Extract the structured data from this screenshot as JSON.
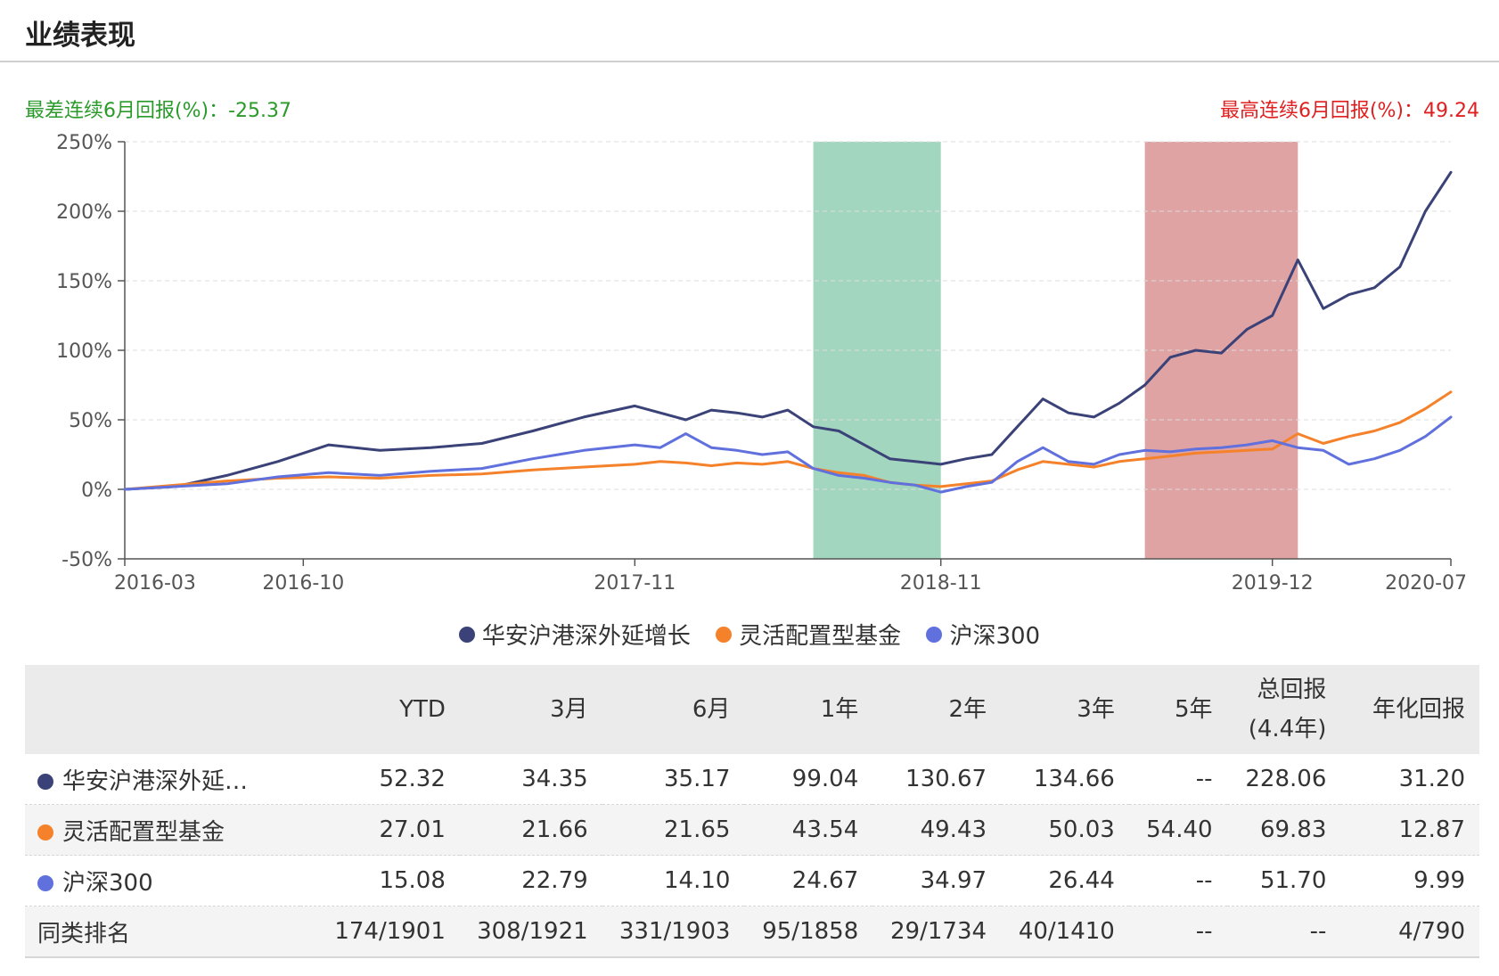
{
  "section_title": "业绩表现",
  "stats": {
    "worst_6m": "最差连续6月回报(%)：-25.37",
    "best_6m": "最高连续6月回报(%)：49.24"
  },
  "colors": {
    "fund": "#3a4278",
    "category": "#f5822a",
    "index": "#6070dc",
    "worst_band": "#a3d6bf",
    "best_band": "#e0a3a3"
  },
  "chart_data": {
    "type": "line",
    "x_ticks": [
      "2016-03",
      "2016-10",
      "2017-11",
      "2018-11",
      "2019-12",
      "2020-07"
    ],
    "y_ticks": [
      "250%",
      "200%",
      "150%",
      "100%",
      "50%",
      "0%",
      "-50%"
    ],
    "ylim": [
      -50,
      250
    ],
    "xlim": [
      "2016-03",
      "2020-07"
    ],
    "grid": "horizontal dashed",
    "legend_position": "bottom-center",
    "highlight_bands": [
      {
        "label": "worst_6m",
        "start": "2018-06",
        "end": "2018-11"
      },
      {
        "label": "best_6m",
        "start": "2019-07",
        "end": "2020-01"
      }
    ],
    "series": [
      {
        "name": "华安沪港深外延增长",
        "color_key": "fund",
        "x": [
          "2016-03",
          "2016-05",
          "2016-07",
          "2016-09",
          "2016-11",
          "2017-01",
          "2017-03",
          "2017-05",
          "2017-07",
          "2017-09",
          "2017-11",
          "2017-12",
          "2018-01",
          "2018-02",
          "2018-03",
          "2018-04",
          "2018-05",
          "2018-06",
          "2018-07",
          "2018-08",
          "2018-09",
          "2018-10",
          "2018-11",
          "2018-12",
          "2019-01",
          "2019-02",
          "2019-03",
          "2019-04",
          "2019-05",
          "2019-06",
          "2019-07",
          "2019-08",
          "2019-09",
          "2019-10",
          "2019-11",
          "2019-12",
          "2020-01",
          "2020-02",
          "2020-03",
          "2020-04",
          "2020-05",
          "2020-06",
          "2020-07"
        ],
        "y": [
          0,
          2,
          10,
          20,
          32,
          28,
          30,
          33,
          42,
          52,
          60,
          55,
          50,
          57,
          55,
          52,
          57,
          45,
          42,
          32,
          22,
          20,
          18,
          22,
          25,
          45,
          65,
          55,
          52,
          62,
          75,
          95,
          100,
          98,
          115,
          125,
          165,
          130,
          140,
          145,
          160,
          200,
          228
        ]
      },
      {
        "name": "灵活配置型基金",
        "color_key": "category",
        "x": [
          "2016-03",
          "2016-05",
          "2016-07",
          "2016-09",
          "2016-11",
          "2017-01",
          "2017-03",
          "2017-05",
          "2017-07",
          "2017-09",
          "2017-11",
          "2017-12",
          "2018-01",
          "2018-02",
          "2018-03",
          "2018-04",
          "2018-05",
          "2018-06",
          "2018-07",
          "2018-08",
          "2018-09",
          "2018-10",
          "2018-11",
          "2018-12",
          "2019-01",
          "2019-02",
          "2019-03",
          "2019-04",
          "2019-05",
          "2019-06",
          "2019-07",
          "2019-08",
          "2019-09",
          "2019-10",
          "2019-11",
          "2019-12",
          "2020-01",
          "2020-02",
          "2020-03",
          "2020-04",
          "2020-05",
          "2020-06",
          "2020-07"
        ],
        "y": [
          0,
          3,
          6,
          8,
          9,
          8,
          10,
          11,
          14,
          16,
          18,
          20,
          19,
          17,
          19,
          18,
          20,
          15,
          12,
          10,
          5,
          3,
          2,
          4,
          6,
          14,
          20,
          18,
          16,
          20,
          22,
          24,
          26,
          27,
          28,
          29,
          40,
          33,
          38,
          42,
          48,
          58,
          70
        ]
      },
      {
        "name": "沪深300",
        "color_key": "index",
        "x": [
          "2016-03",
          "2016-05",
          "2016-07",
          "2016-09",
          "2016-11",
          "2017-01",
          "2017-03",
          "2017-05",
          "2017-07",
          "2017-09",
          "2017-11",
          "2017-12",
          "2018-01",
          "2018-02",
          "2018-03",
          "2018-04",
          "2018-05",
          "2018-06",
          "2018-07",
          "2018-08",
          "2018-09",
          "2018-10",
          "2018-11",
          "2018-12",
          "2019-01",
          "2019-02",
          "2019-03",
          "2019-04",
          "2019-05",
          "2019-06",
          "2019-07",
          "2019-08",
          "2019-09",
          "2019-10",
          "2019-11",
          "2019-12",
          "2020-01",
          "2020-02",
          "2020-03",
          "2020-04",
          "2020-05",
          "2020-06",
          "2020-07"
        ],
        "y": [
          0,
          2,
          4,
          9,
          12,
          10,
          13,
          15,
          22,
          28,
          32,
          30,
          40,
          30,
          28,
          25,
          27,
          15,
          10,
          8,
          5,
          3,
          -2,
          2,
          5,
          20,
          30,
          20,
          18,
          25,
          28,
          27,
          29,
          30,
          32,
          35,
          30,
          28,
          18,
          22,
          28,
          38,
          52
        ]
      }
    ]
  },
  "table": {
    "headers": {
      "ytd": "YTD",
      "m3": "3月",
      "m6": "6月",
      "y1": "1年",
      "y2": "2年",
      "y3": "3年",
      "y5": "5年",
      "total_line1": "总回报",
      "total_line2": "(4.4年)",
      "annual": "年化回报"
    },
    "rows": [
      {
        "name": "华安沪港深外延…",
        "color_key": "fund",
        "values": [
          "52.32",
          "34.35",
          "35.17",
          "99.04",
          "130.67",
          "134.66",
          "--",
          "228.06",
          "31.20"
        ]
      },
      {
        "name": "灵活配置型基金",
        "color_key": "category",
        "values": [
          "27.01",
          "21.66",
          "21.65",
          "43.54",
          "49.43",
          "50.03",
          "54.40",
          "69.83",
          "12.87"
        ]
      },
      {
        "name": "沪深300",
        "color_key": "index",
        "values": [
          "15.08",
          "22.79",
          "14.10",
          "24.67",
          "34.97",
          "26.44",
          "--",
          "51.70",
          "9.99"
        ]
      }
    ],
    "rank": {
      "label": "同类排名",
      "values": [
        "174/1901",
        "308/1921",
        "331/1903",
        "95/1858",
        "29/1734",
        "40/1410",
        "--",
        "--",
        "4/790"
      ]
    }
  }
}
